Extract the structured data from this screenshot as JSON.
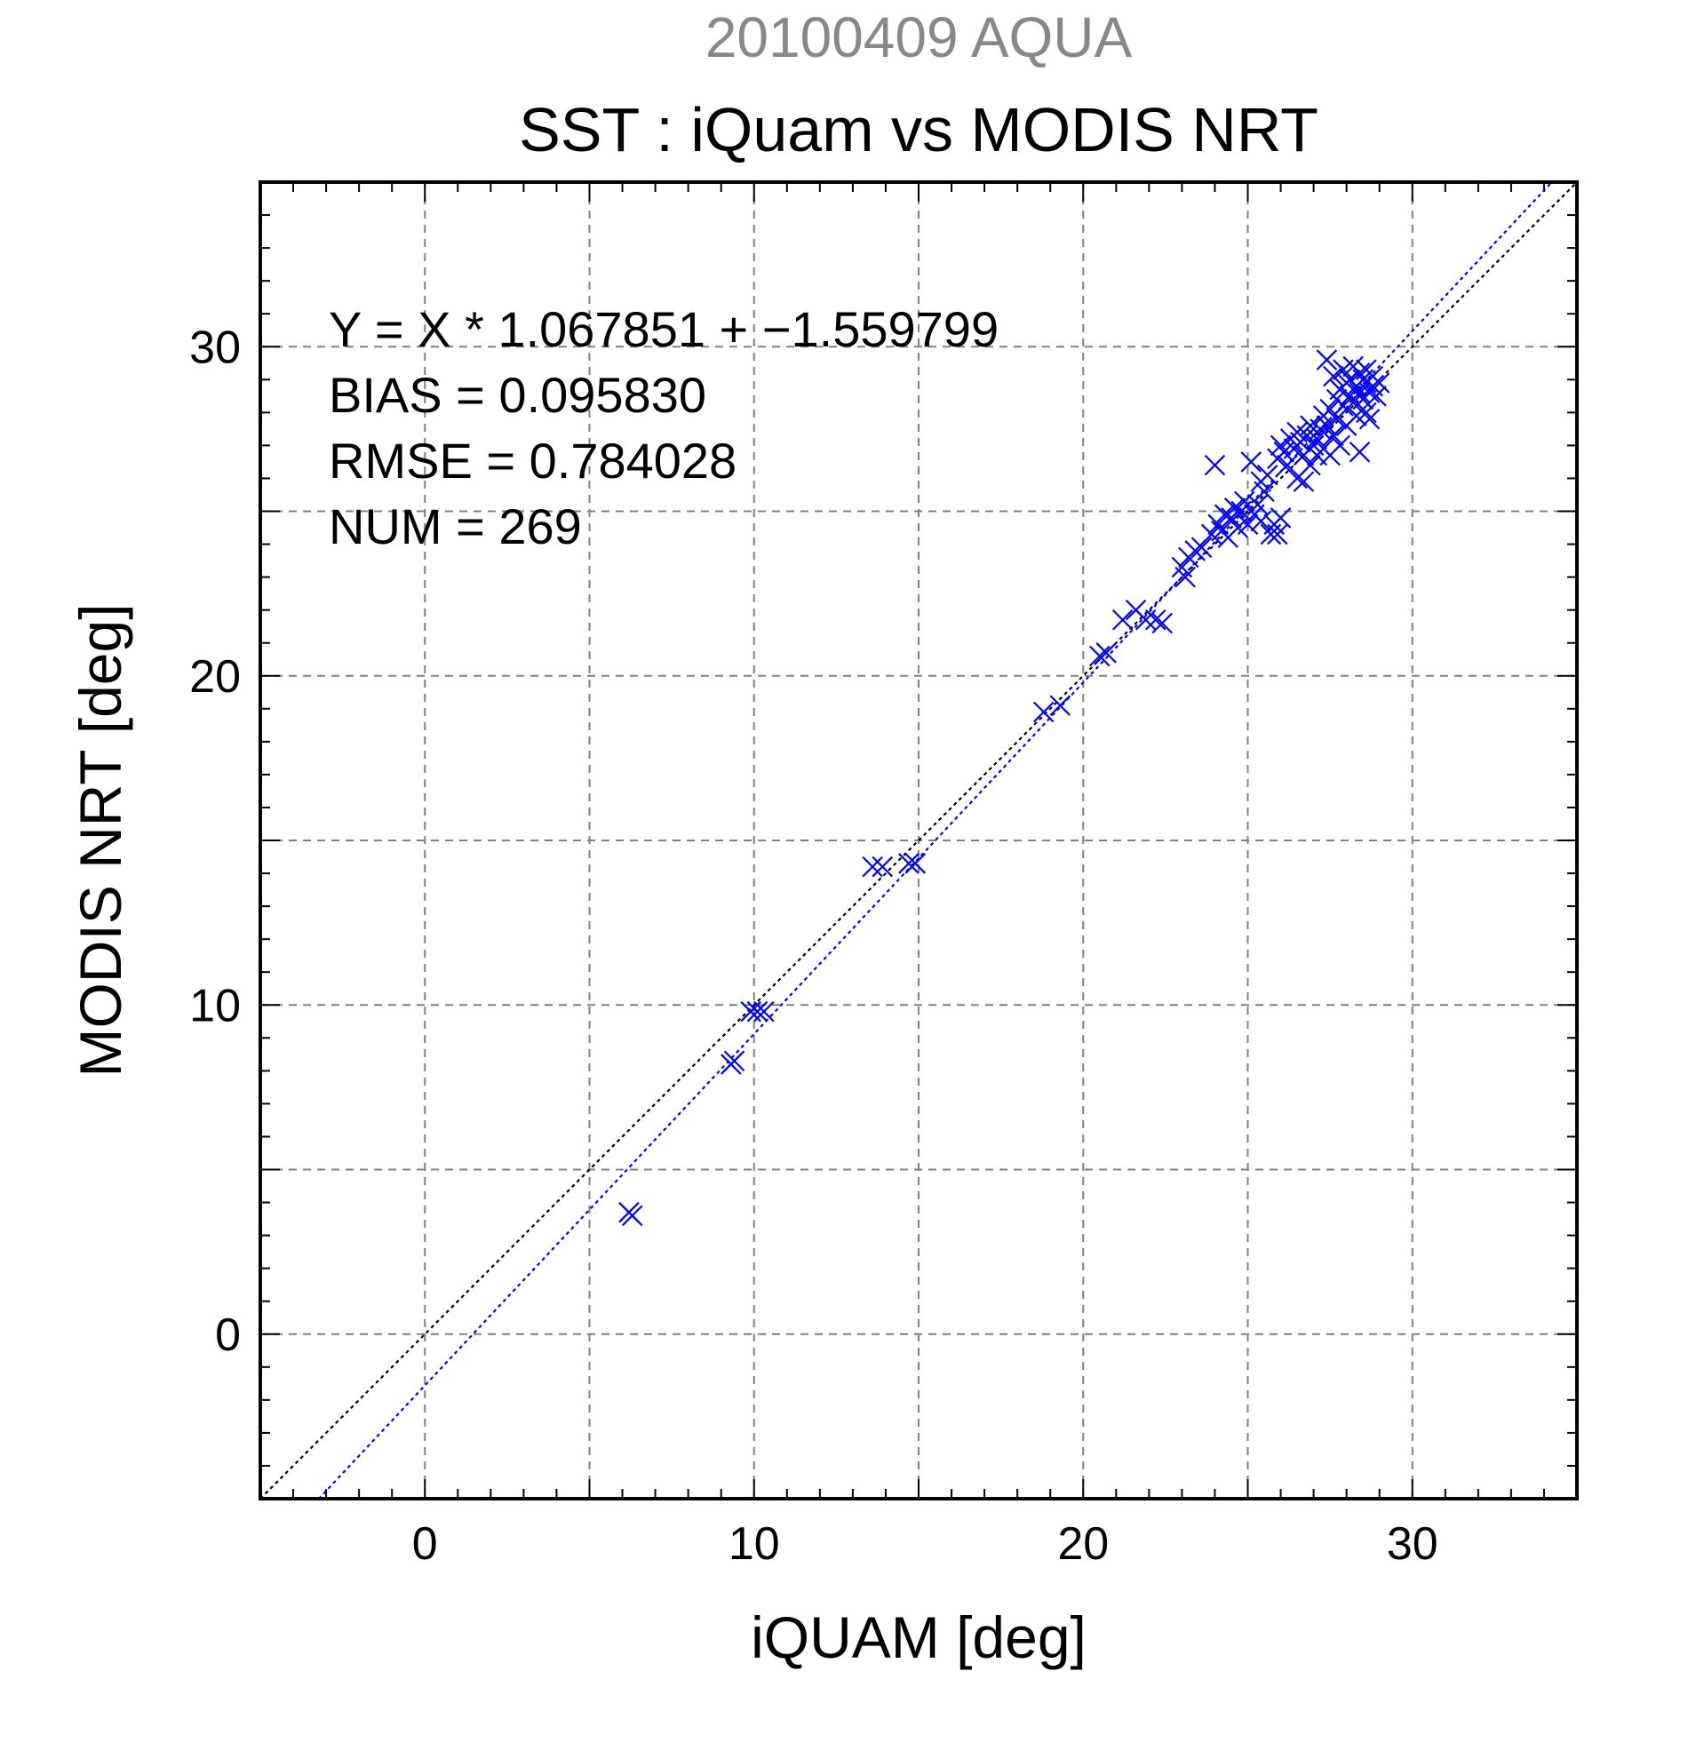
{
  "header": {
    "date_title": "20100409 AQUA",
    "main_title": "SST : iQuam vs MODIS NRT"
  },
  "stats": {
    "regression": "Y = X * 1.067851 + −1.559799",
    "bias": "BIAS = 0.095830",
    "rmse": "RMSE = 0.784028",
    "num": "NUM = 269"
  },
  "colors": {
    "points": "#0000ff",
    "fit_line": "#0000ff",
    "identity_line": "#000000",
    "date_title": "#888888"
  },
  "chart_data": {
    "type": "scatter",
    "title": "SST : iQuam vs MODIS NRT",
    "subtitle": "20100409 AQUA",
    "xlabel": "iQUAM [deg]",
    "ylabel": "MODIS NRT [deg]",
    "xlim": [
      -5,
      35
    ],
    "ylim": [
      -5,
      35
    ],
    "x_ticks": [
      0,
      10,
      20,
      30
    ],
    "y_ticks": [
      0,
      10,
      20,
      30
    ],
    "grid": true,
    "marker": "x",
    "reference_lines": [
      {
        "type": "identity",
        "slope": 1,
        "intercept": 0,
        "color": "#000000",
        "style": "dotted"
      },
      {
        "type": "fit",
        "slope": 1.067851,
        "intercept": -1.559799,
        "color": "#0000ff",
        "style": "dotted"
      }
    ],
    "points": [
      [
        6.2,
        3.7
      ],
      [
        6.3,
        3.6
      ],
      [
        9.3,
        8.2
      ],
      [
        9.4,
        8.3
      ],
      [
        9.9,
        9.8
      ],
      [
        10.1,
        9.8
      ],
      [
        10.3,
        9.8
      ],
      [
        13.6,
        14.2
      ],
      [
        13.9,
        14.2
      ],
      [
        14.7,
        14.3
      ],
      [
        14.9,
        14.3
      ],
      [
        18.8,
        18.9
      ],
      [
        19.3,
        19.1
      ],
      [
        20.5,
        20.6
      ],
      [
        20.7,
        20.7
      ],
      [
        21.2,
        21.7
      ],
      [
        21.6,
        22.0
      ],
      [
        21.9,
        21.7
      ],
      [
        22.2,
        21.7
      ],
      [
        22.4,
        21.6
      ],
      [
        23.0,
        23.3
      ],
      [
        23.2,
        23.6
      ],
      [
        23.4,
        23.8
      ],
      [
        23.6,
        23.9
      ],
      [
        23.1,
        23.0
      ],
      [
        23.9,
        24.3
      ],
      [
        24.1,
        24.6
      ],
      [
        24.2,
        24.4
      ],
      [
        24.3,
        24.9
      ],
      [
        24.4,
        24.2
      ],
      [
        24.5,
        24.8
      ],
      [
        24.0,
        26.4
      ],
      [
        24.6,
        25.1
      ],
      [
        24.7,
        24.5
      ],
      [
        24.8,
        25.0
      ],
      [
        24.9,
        25.3
      ],
      [
        25.0,
        24.6
      ],
      [
        25.1,
        26.5
      ],
      [
        25.2,
        24.9
      ],
      [
        25.3,
        25.2
      ],
      [
        25.4,
        25.9
      ],
      [
        25.5,
        25.6
      ],
      [
        25.6,
        26.1
      ],
      [
        25.4,
        24.7
      ],
      [
        25.7,
        24.3
      ],
      [
        25.8,
        24.6
      ],
      [
        25.9,
        24.3
      ],
      [
        26.0,
        24.8
      ],
      [
        25.9,
        26.6
      ],
      [
        26.0,
        27.0
      ],
      [
        26.1,
        26.8
      ],
      [
        26.2,
        26.4
      ],
      [
        26.3,
        27.2
      ],
      [
        26.4,
        26.9
      ],
      [
        26.5,
        27.4
      ],
      [
        26.6,
        27.1
      ],
      [
        26.7,
        26.7
      ],
      [
        26.8,
        27.3
      ],
      [
        26.9,
        27.6
      ],
      [
        27.0,
        27.0
      ],
      [
        26.5,
        26.0
      ],
      [
        26.7,
        25.9
      ],
      [
        26.9,
        26.4
      ],
      [
        27.1,
        26.7
      ],
      [
        27.2,
        27.5
      ],
      [
        27.3,
        27.9
      ],
      [
        27.1,
        27.2
      ],
      [
        27.3,
        26.9
      ],
      [
        27.4,
        27.6
      ],
      [
        27.5,
        28.1
      ],
      [
        27.5,
        26.7
      ],
      [
        27.6,
        27.3
      ],
      [
        27.4,
        29.6
      ],
      [
        27.6,
        29.1
      ],
      [
        27.7,
        28.4
      ],
      [
        27.7,
        27.8
      ],
      [
        27.8,
        28.7
      ],
      [
        27.8,
        27.0
      ],
      [
        27.9,
        28.2
      ],
      [
        27.9,
        29.3
      ],
      [
        28.0,
        28.9
      ],
      [
        28.0,
        27.6
      ],
      [
        28.1,
        28.5
      ],
      [
        28.1,
        29.0
      ],
      [
        28.2,
        28.3
      ],
      [
        28.2,
        29.4
      ],
      [
        28.3,
        28.8
      ],
      [
        28.3,
        27.9
      ],
      [
        28.4,
        29.2
      ],
      [
        28.4,
        28.6
      ],
      [
        28.5,
        29.0
      ],
      [
        28.5,
        28.4
      ],
      [
        28.6,
        28.9
      ],
      [
        28.6,
        29.3
      ],
      [
        28.7,
        28.6
      ],
      [
        28.7,
        27.8
      ],
      [
        28.8,
        28.8
      ],
      [
        28.8,
        29.1
      ],
      [
        28.4,
        26.8
      ],
      [
        28.6,
        28.0
      ],
      [
        28.9,
        28.5
      ],
      [
        29.0,
        28.9
      ]
    ]
  }
}
